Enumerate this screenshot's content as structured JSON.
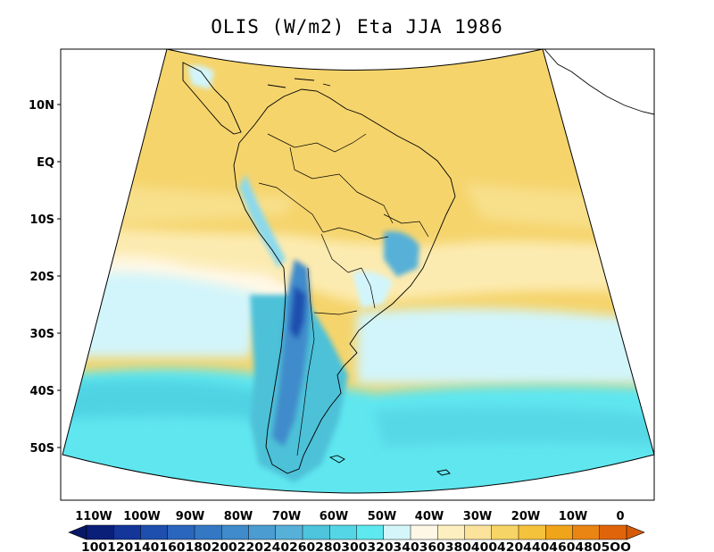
{
  "title": "OLIS (W/m2) Eta JJA 1986",
  "chart_data": {
    "type": "heatmap",
    "title": "OLIS (W/m2) Eta JJA 1986",
    "variable": "OLIS",
    "units": "W/m2",
    "model": "Eta",
    "season": "JJA",
    "year": 1986,
    "lat_ticks": [
      "10N",
      "EQ",
      "10S",
      "20S",
      "30S",
      "40S",
      "50S"
    ],
    "lon_ticks": [
      "110W",
      "100W",
      "90W",
      "80W",
      "70W",
      "60W",
      "50W",
      "40W",
      "30W",
      "20W",
      "10W",
      "0"
    ],
    "colorbar": {
      "levels": [
        100,
        120,
        140,
        160,
        180,
        200,
        220,
        240,
        260,
        280,
        300,
        320,
        340,
        360,
        380,
        400,
        420,
        440,
        460,
        480,
        500
      ],
      "label_text": "1001201401601802002202402602803003203403603804004204404604805OO",
      "colors": [
        "#0a1f78",
        "#14359a",
        "#1e4fae",
        "#2a66bd",
        "#3478c4",
        "#3f8bcb",
        "#4b9dd1",
        "#57b0d8",
        "#4ec4dd",
        "#55d6e6",
        "#5ee8ef",
        "#d4f6fb",
        "#fff7e6",
        "#fdefbf",
        "#fbe39c",
        "#f7d466",
        "#f5c23c",
        "#f0a41a",
        "#ea8412",
        "#e0650a"
      ],
      "extend": "both"
    }
  }
}
